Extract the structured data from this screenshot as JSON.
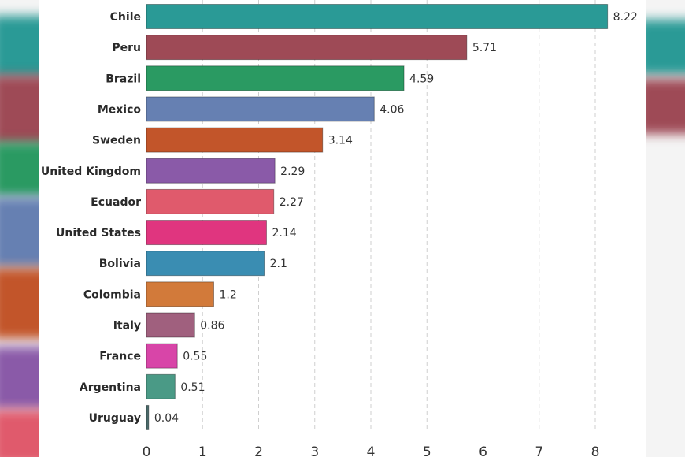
{
  "chart_data": {
    "type": "bar",
    "orientation": "horizontal",
    "title": "",
    "xlabel": "",
    "ylabel": "",
    "xlim": [
      0,
      8.4
    ],
    "xticks": [
      "0",
      "1",
      "2",
      "3",
      "4",
      "5",
      "6",
      "7",
      "8"
    ],
    "grid": "vertical dashed",
    "categories": [
      "Chile",
      "Peru",
      "Brazil",
      "Mexico",
      "Sweden",
      "United Kingdom",
      "Ecuador",
      "United States",
      "Bolivia",
      "Colombia",
      "Italy",
      "France",
      "Argentina",
      "Uruguay"
    ],
    "values": [
      8.22,
      5.71,
      4.59,
      4.06,
      3.14,
      2.29,
      2.27,
      2.14,
      2.1,
      1.2,
      0.86,
      0.55,
      0.51,
      0.04
    ],
    "value_labels": [
      "8.22",
      "5.71",
      "4.59",
      "4.06",
      "3.14",
      "2.29",
      "2.27",
      "2.14",
      "2.1",
      "1.2",
      "0.86",
      "0.55",
      "0.51",
      "0.04"
    ],
    "colors": [
      "#2a9a96",
      "#9e4a56",
      "#2a9a62",
      "#6680b2",
      "#c2552a",
      "#8a5aa8",
      "#e05a6c",
      "#e0357f",
      "#3a8db2",
      "#d27a3a",
      "#a0607e",
      "#d845a8",
      "#4a9a86",
      "#4a6a6a"
    ]
  }
}
